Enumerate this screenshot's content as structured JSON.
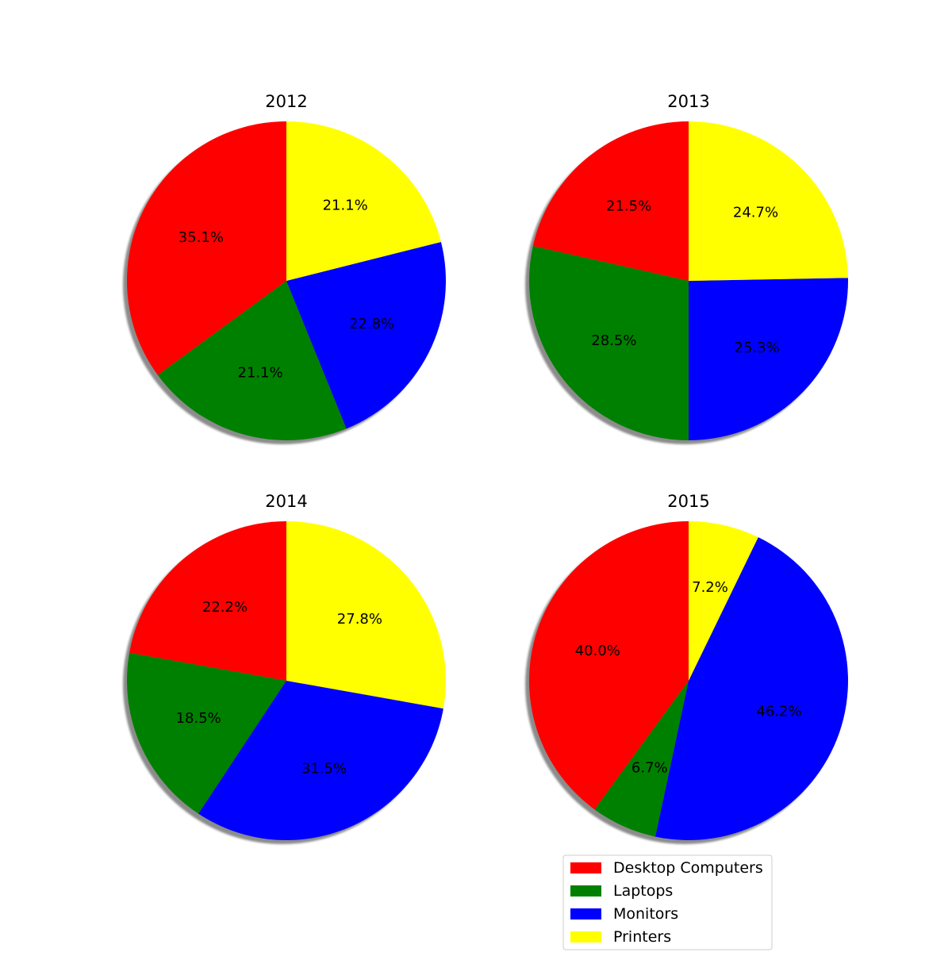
{
  "chart_data": [
    {
      "type": "pie",
      "title": "2012",
      "categories": [
        "Desktop Computers",
        "Laptops",
        "Monitors",
        "Printers"
      ],
      "values": [
        35.1,
        21.1,
        22.8,
        21.1
      ],
      "labels": [
        "35.1%",
        "21.1%",
        "22.8%",
        "21.1%"
      ],
      "colors": [
        "#ff0000",
        "#008000",
        "#0000ff",
        "#ffff00"
      ],
      "start_angle_deg": 90,
      "direction": "counterclockwise",
      "shadow": true
    },
    {
      "type": "pie",
      "title": "2013",
      "categories": [
        "Desktop Computers",
        "Laptops",
        "Monitors",
        "Printers"
      ],
      "values": [
        21.5,
        28.5,
        25.3,
        24.7
      ],
      "labels": [
        "21.5%",
        "28.5%",
        "25.3%",
        "24.7%"
      ],
      "colors": [
        "#ff0000",
        "#008000",
        "#0000ff",
        "#ffff00"
      ],
      "start_angle_deg": 90,
      "direction": "counterclockwise",
      "shadow": true
    },
    {
      "type": "pie",
      "title": "2014",
      "categories": [
        "Desktop Computers",
        "Laptops",
        "Monitors",
        "Printers"
      ],
      "values": [
        22.2,
        18.5,
        31.5,
        27.8
      ],
      "labels": [
        "22.2%",
        "18.5%",
        "31.5%",
        "27.8%"
      ],
      "colors": [
        "#ff0000",
        "#008000",
        "#0000ff",
        "#ffff00"
      ],
      "start_angle_deg": 90,
      "direction": "counterclockwise",
      "shadow": true
    },
    {
      "type": "pie",
      "title": "2015",
      "categories": [
        "Desktop Computers",
        "Laptops",
        "Monitors",
        "Printers"
      ],
      "values": [
        40.0,
        6.7,
        46.2,
        7.2
      ],
      "labels": [
        "40.0%",
        "6.7%",
        "46.2%",
        "7.2%"
      ],
      "colors": [
        "#ff0000",
        "#008000",
        "#0000ff",
        "#ffff00"
      ],
      "start_angle_deg": 90,
      "direction": "counterclockwise",
      "shadow": true
    }
  ],
  "legend": {
    "placement": "bottom-right",
    "entries": [
      {
        "label": "Desktop Computers",
        "color": "#ff0000"
      },
      {
        "label": "Laptops",
        "color": "#008000"
      },
      {
        "label": "Monitors",
        "color": "#0000ff"
      },
      {
        "label": "Printers",
        "color": "#ffff00"
      }
    ]
  }
}
